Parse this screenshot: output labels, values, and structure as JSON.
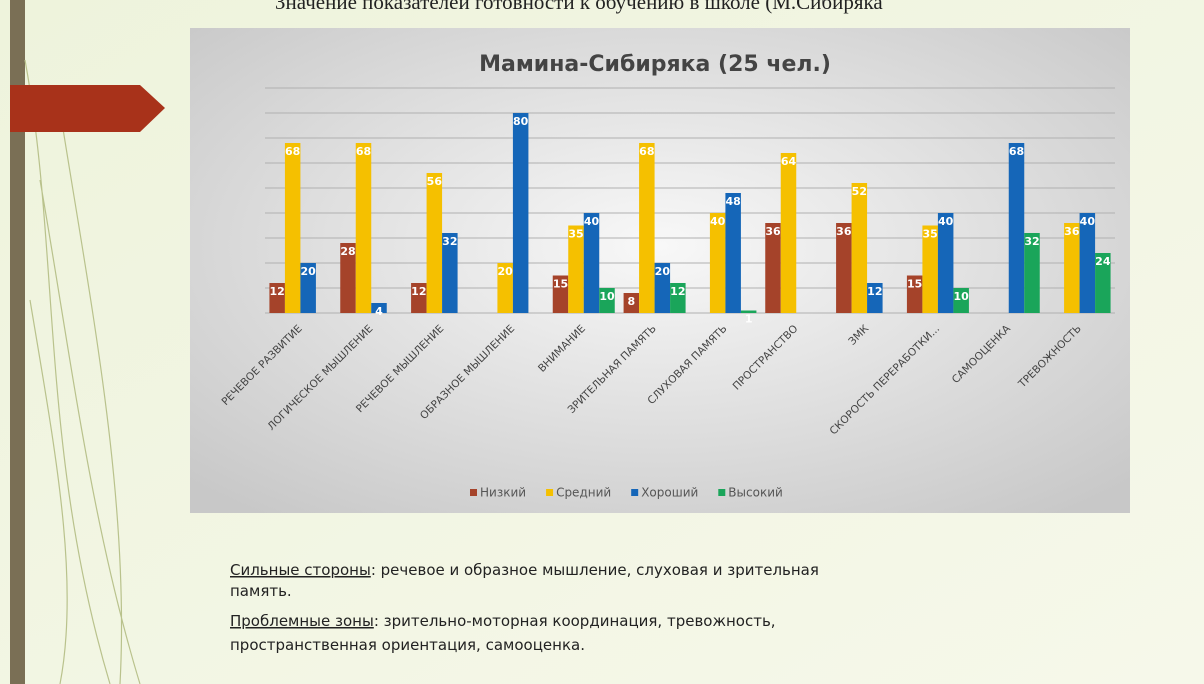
{
  "header": {
    "title": "Значение показателей готовности к обучению в школе (М.Сибиряка"
  },
  "chart_data": {
    "type": "bar",
    "title": "Мамина-Сибиряка  (25 чел.)",
    "categories": [
      "РЕЧЕВОЕ РАЗВИТИЕ",
      "ЛОГИЧЕСКОЕ МЫШЛЕНИЕ",
      "РЕЧЕВОЕ МЫШЛЕНИЕ",
      "ОБРАЗНОЕ МЫШЛЕНИЕ",
      "ВНИМАНИЕ",
      "ЗРИТЕЛЬНАЯ ПАМЯТЬ",
      "СЛУХОВАЯ ПАМЯТЬ",
      "ПРОСТРАНСТВО",
      "ЗМК",
      "СКОРОСТЬ ПЕРЕРАБОТКИ...",
      "САМООЦЕНКА",
      "ТРЕВОЖНОСТЬ"
    ],
    "series": [
      {
        "name": "Низкий",
        "color": "#a5432a",
        "values": [
          12,
          28,
          12,
          null,
          15,
          8,
          null,
          36,
          36,
          15,
          null,
          null
        ]
      },
      {
        "name": "Средний",
        "color": "#f5c000",
        "values": [
          68,
          68,
          56,
          20,
          35,
          68,
          40,
          64,
          52,
          35,
          null,
          36
        ]
      },
      {
        "name": "Хороший",
        "color": "#1566b8",
        "values": [
          20,
          4,
          32,
          80,
          40,
          20,
          48,
          null,
          12,
          40,
          68,
          40
        ]
      },
      {
        "name": "Высокий",
        "color": "#1aa55a",
        "values": [
          null,
          null,
          null,
          null,
          10,
          12,
          1,
          null,
          null,
          10,
          32,
          24
        ]
      }
    ],
    "ylim": [
      0,
      90
    ],
    "yticks": [
      0,
      10,
      20,
      30,
      40,
      50,
      60,
      70,
      80,
      90
    ],
    "grid": true,
    "legend": "bottom"
  },
  "notes": {
    "strengths": {
      "label": "Сильные стороны",
      "text": ": речевое и образное мышление, слуховая и зрительная",
      "text2": "память."
    },
    "problems": {
      "label": "Проблемные зоны",
      "text": ": зрительно-моторная координация, тревожность,",
      "text2": "пространственная ориентация, самооценка."
    }
  }
}
